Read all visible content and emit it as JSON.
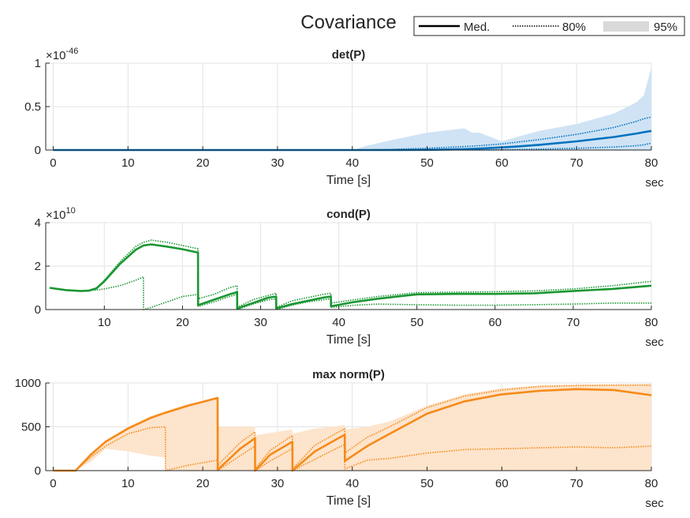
{
  "figure": {
    "title": "Covariance",
    "legend": {
      "median_label": "Med.",
      "band80_label": "80%",
      "band95_label": "95%"
    }
  },
  "chart_data": [
    {
      "type": "line",
      "title": "det(P)",
      "xlabel": "Time [s]",
      "x_unit_label": "sec",
      "ylabel": "",
      "exponent_label": "×10",
      "exponent_value": "-46",
      "xlim": [
        -1,
        80
      ],
      "ylim": [
        0,
        1
      ],
      "xticks": [
        0,
        10,
        20,
        30,
        40,
        50,
        60,
        70,
        80
      ],
      "yticks": [
        0,
        0.5,
        1
      ],
      "ytick_labels": [
        "0",
        "0.5",
        "1"
      ],
      "grid": true,
      "color": "#0072BD",
      "band_color": "#cfe3f5",
      "x": [
        0,
        10,
        20,
        30,
        40,
        42,
        45,
        50,
        55,
        56,
        57,
        60,
        62,
        65,
        70,
        75,
        78,
        79,
        80
      ],
      "series": [
        {
          "name": "Med.",
          "values": [
            0,
            0,
            0,
            0,
            0,
            0,
            0,
            0.002,
            0.01,
            0.013,
            0.016,
            0.03,
            0.04,
            0.06,
            0.1,
            0.15,
            0.19,
            0.205,
            0.22
          ]
        },
        {
          "name": "80%",
          "role": "upper",
          "values": [
            0,
            0,
            0,
            0,
            0,
            0.002,
            0.006,
            0.02,
            0.04,
            0.045,
            0.05,
            0.07,
            0.09,
            0.12,
            0.18,
            0.26,
            0.33,
            0.36,
            0.38
          ]
        },
        {
          "name": "80%",
          "role": "lower",
          "values": [
            0,
            0,
            0,
            0,
            0,
            0,
            0,
            0,
            0,
            0,
            0,
            0.002,
            0.005,
            0.01,
            0.02,
            0.035,
            0.05,
            0.06,
            0.08
          ]
        },
        {
          "name": "95%",
          "role": "upper",
          "values": [
            0,
            0,
            0,
            0,
            0,
            0.05,
            0.11,
            0.2,
            0.25,
            0.2,
            0.2,
            0.1,
            0.15,
            0.22,
            0.3,
            0.42,
            0.55,
            0.63,
            0.95
          ]
        },
        {
          "name": "95%",
          "role": "lower",
          "values": [
            0,
            0,
            0,
            0,
            0,
            0,
            0,
            0,
            0,
            0,
            0,
            0,
            0,
            0,
            0,
            0,
            0,
            0,
            0
          ]
        }
      ]
    },
    {
      "type": "line",
      "title": "cond(P)",
      "xlabel": "Time [s]",
      "x_unit_label": "sec",
      "ylabel": "",
      "exponent_label": "×10",
      "exponent_value": "10",
      "xlim": [
        2.5,
        80
      ],
      "ylim": [
        0,
        4
      ],
      "xticks": [
        10,
        20,
        30,
        40,
        50,
        60,
        70,
        80
      ],
      "yticks": [
        0,
        2,
        4
      ],
      "ytick_labels": [
        "0",
        "2",
        "4"
      ],
      "grid": true,
      "color": "#1a9632",
      "x": [
        3,
        5,
        7,
        8,
        9,
        10,
        12,
        14,
        15,
        15.01,
        16,
        18,
        20,
        21.99,
        22,
        24,
        26,
        26.99,
        27,
        29,
        31,
        31.99,
        32,
        34,
        36,
        38,
        38.99,
        39,
        42,
        45,
        50,
        55,
        60,
        65,
        70,
        75,
        80
      ],
      "series": [
        {
          "name": "Med.",
          "values": [
            1.0,
            0.9,
            0.85,
            0.87,
            0.98,
            1.3,
            2.1,
            2.75,
            2.95,
            2.95,
            3.0,
            2.9,
            2.78,
            2.62,
            0.2,
            0.45,
            0.7,
            0.8,
            0.05,
            0.3,
            0.55,
            0.6,
            0.05,
            0.25,
            0.4,
            0.55,
            0.6,
            0.15,
            0.35,
            0.5,
            0.7,
            0.72,
            0.72,
            0.75,
            0.85,
            0.95,
            1.1
          ]
        },
        {
          "name": "80%",
          "role": "upper",
          "values": [
            1.0,
            0.9,
            0.85,
            0.87,
            1.0,
            1.35,
            2.2,
            2.9,
            3.1,
            3.1,
            3.2,
            3.1,
            2.95,
            2.8,
            0.5,
            0.7,
            1.0,
            1.1,
            0.1,
            0.45,
            0.65,
            0.75,
            0.1,
            0.4,
            0.55,
            0.7,
            0.75,
            0.3,
            0.45,
            0.6,
            0.78,
            0.8,
            0.82,
            0.86,
            0.95,
            1.1,
            1.3
          ]
        },
        {
          "name": "80%",
          "role": "lower",
          "values": [
            1.0,
            0.9,
            0.85,
            0.87,
            0.9,
            0.95,
            1.1,
            1.35,
            1.5,
            0.0,
            0.1,
            0.35,
            0.6,
            0.7,
            0.15,
            0.35,
            0.6,
            0.7,
            0.0,
            0.25,
            0.45,
            0.5,
            0.0,
            0.2,
            0.35,
            0.45,
            0.5,
            0.1,
            0.2,
            0.25,
            0.22,
            0.2,
            0.2,
            0.22,
            0.25,
            0.3,
            0.3
          ]
        }
      ]
    },
    {
      "type": "line",
      "title": "max norm(P)",
      "xlabel": "Time [s]",
      "x_unit_label": "sec",
      "ylabel": "",
      "xlim": [
        -1,
        80
      ],
      "ylim": [
        0,
        1000
      ],
      "xticks": [
        0,
        10,
        20,
        30,
        40,
        50,
        60,
        70,
        80
      ],
      "yticks": [
        0,
        500,
        1000
      ],
      "ytick_labels": [
        "0",
        "500",
        "1000"
      ],
      "grid": true,
      "color": "#f58a18",
      "band_color": "#fde4cc",
      "x": [
        0,
        1,
        2,
        3,
        5,
        7,
        10,
        13,
        15,
        15.01,
        18,
        21.99,
        22,
        25,
        26.99,
        27,
        29,
        31.99,
        32,
        35,
        38.99,
        39,
        42,
        45,
        50,
        55,
        60,
        65,
        70,
        75,
        80
      ],
      "series": [
        {
          "name": "Med.",
          "values": [
            0,
            0,
            0,
            0,
            180,
            330,
            480,
            600,
            660,
            660,
            740,
            830,
            10,
            250,
            370,
            0,
            180,
            330,
            0,
            220,
            410,
            110,
            280,
            420,
            650,
            790,
            870,
            910,
            930,
            920,
            860
          ]
        },
        {
          "name": "80%",
          "role": "upper",
          "values": [
            0,
            0,
            0,
            0,
            180,
            330,
            480,
            600,
            660,
            660,
            740,
            830,
            60,
            320,
            440,
            20,
            230,
            400,
            20,
            290,
            480,
            200,
            380,
            500,
            720,
            850,
            920,
            960,
            970,
            975,
            975
          ]
        },
        {
          "name": "80%",
          "role": "lower",
          "values": [
            0,
            0,
            0,
            0,
            150,
            280,
            420,
            490,
            500,
            0,
            60,
            120,
            0,
            170,
            280,
            0,
            110,
            250,
            0,
            130,
            300,
            20,
            120,
            140,
            200,
            240,
            250,
            260,
            270,
            260,
            280
          ]
        },
        {
          "name": "95%",
          "role": "upper",
          "values": [
            0,
            0,
            0,
            0,
            190,
            340,
            500,
            620,
            680,
            680,
            760,
            830,
            500,
            500,
            500,
            400,
            430,
            470,
            420,
            480,
            520,
            470,
            500,
            560,
            740,
            870,
            940,
            970,
            980,
            985,
            990
          ]
        },
        {
          "name": "95%",
          "role": "lower",
          "values": [
            0,
            0,
            0,
            0,
            100,
            250,
            220,
            170,
            150,
            0,
            0,
            0,
            0,
            0,
            0,
            0,
            0,
            0,
            0,
            0,
            0,
            0,
            0,
            0,
            0,
            0,
            0,
            0,
            0,
            0,
            0
          ]
        }
      ]
    }
  ]
}
